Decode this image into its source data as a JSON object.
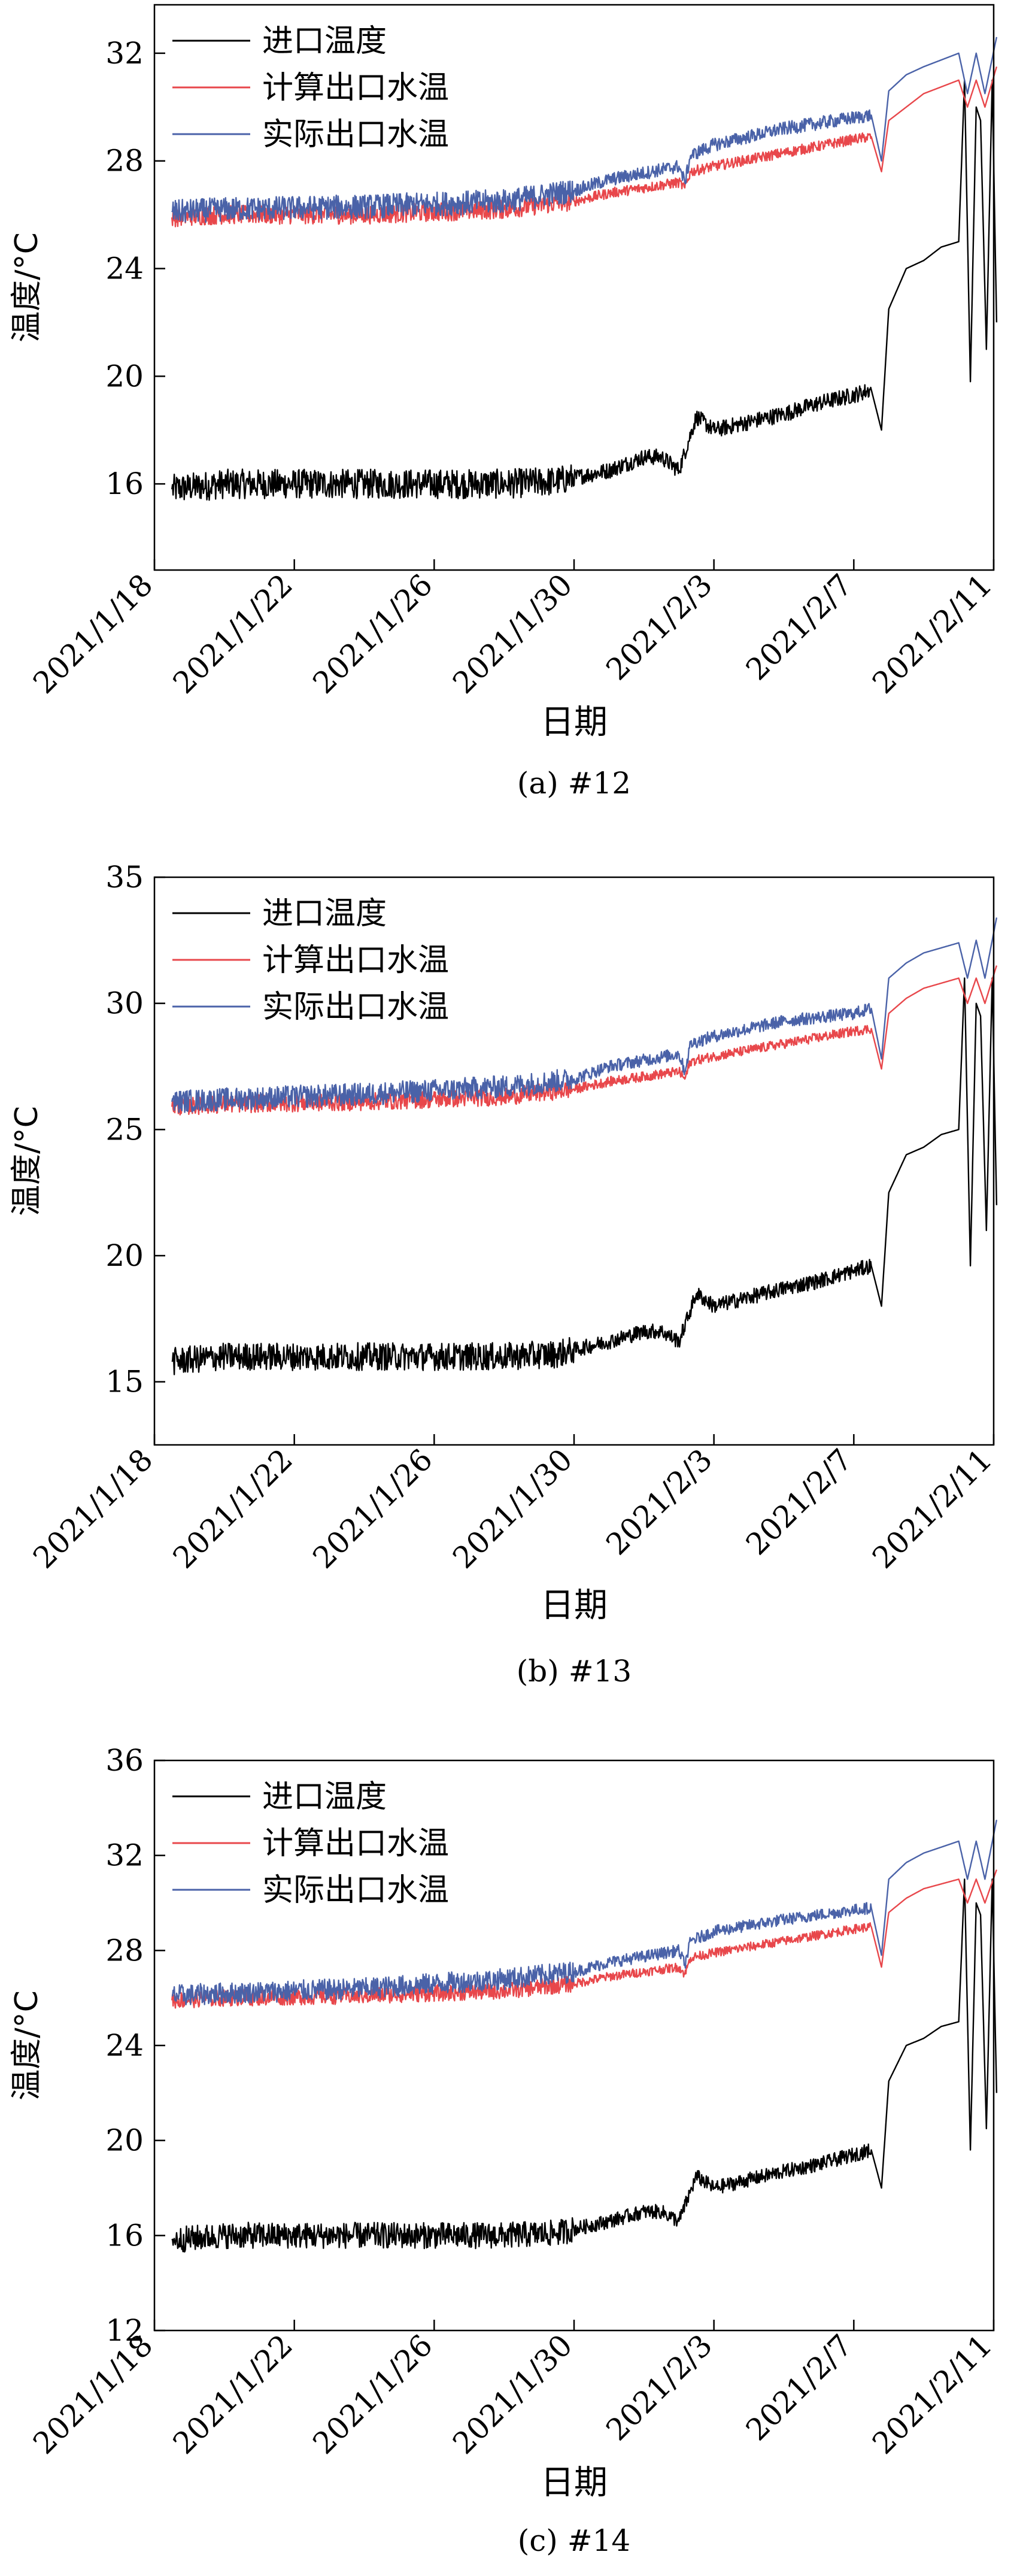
{
  "chart_data": [
    {
      "type": "line",
      "caption": "(a) #12",
      "xlabel": "日期",
      "ylabel": "温度/°C",
      "x_ticks": [
        "2021/1/18",
        "2021/1/22",
        "2021/1/26",
        "2021/1/30",
        "2021/2/3",
        "2021/2/7",
        "2021/2/11"
      ],
      "x_range": [
        "2021/1/18",
        "2021/2/11"
      ],
      "y_ticks": [
        16,
        20,
        24,
        28,
        32
      ],
      "ylim": [
        12.8,
        33.8
      ],
      "legend_position": "top-left",
      "series": [
        {
          "name": "进口温度",
          "color": "#000000",
          "x": [
            "2021/1/18 12:00",
            "2021/1/20",
            "2021/1/24",
            "2021/1/28",
            "2021/1/29 12:00",
            "2021/1/31",
            "2021/2/1",
            "2021/2/1 12:00",
            "2021/2/2",
            "2021/2/2 12:00",
            "2021/2/3",
            "2021/2/5",
            "2021/2/6",
            "2021/2/7",
            "2021/2/7 12:00",
            "2021/2/7 19:00",
            "2021/2/8",
            "2021/2/8 12:00",
            "2021/2/9",
            "2021/2/9 12:00",
            "2021/2/10",
            "2021/2/10 04:00",
            "2021/2/10 08:00",
            "2021/2/10 12:00",
            "2021/2/10 15:00",
            "2021/2/10 19:00",
            "2021/2/10 23:00",
            "2021/2/11 02:00"
          ],
          "values": [
            15.8,
            16.0,
            16.0,
            16.0,
            16.1,
            16.5,
            17.0,
            17.0,
            16.5,
            18.5,
            18.0,
            18.6,
            19.0,
            19.3,
            19.5,
            18.0,
            22.5,
            24.0,
            24.3,
            24.8,
            25.0,
            31.0,
            19.8,
            30.0,
            29.5,
            21.0,
            31.0,
            22.0
          ]
        },
        {
          "name": "计算出口水温",
          "color": "#e8474b",
          "x": [
            "2021/1/18 12:00",
            "2021/1/20",
            "2021/1/24",
            "2021/1/28",
            "2021/1/30",
            "2021/1/31",
            "2021/2/2",
            "2021/2/2 04:00",
            "2021/2/2 08:00",
            "2021/2/3",
            "2021/2/5",
            "2021/2/7",
            "2021/2/7 12:00",
            "2021/2/7 19:00",
            "2021/2/8",
            "2021/2/8 12:00",
            "2021/2/9",
            "2021/2/10",
            "2021/2/10 06:00",
            "2021/2/10 12:00",
            "2021/2/10 18:00",
            "2021/2/11 02:00"
          ],
          "values": [
            25.9,
            26.0,
            26.0,
            26.2,
            26.5,
            26.8,
            27.2,
            27.0,
            27.6,
            27.8,
            28.3,
            28.8,
            28.9,
            27.6,
            29.5,
            30.0,
            30.5,
            31.0,
            30.0,
            31.0,
            30.0,
            31.5
          ]
        },
        {
          "name": "实际出口水温",
          "color": "#4a62a8",
          "x": [
            "2021/1/18 12:00",
            "2021/1/20",
            "2021/1/24",
            "2021/1/28",
            "2021/1/30",
            "2021/1/31",
            "2021/2/2",
            "2021/2/2 04:00",
            "2021/2/2 08:00",
            "2021/2/3",
            "2021/2/5",
            "2021/2/7",
            "2021/2/7 12:00",
            "2021/2/7 19:00",
            "2021/2/8",
            "2021/2/8 12:00",
            "2021/2/9",
            "2021/2/10",
            "2021/2/10 06:00",
            "2021/2/10 12:00",
            "2021/2/10 18:00",
            "2021/2/11 02:00"
          ],
          "values": [
            26.1,
            26.2,
            26.3,
            26.5,
            26.9,
            27.3,
            27.8,
            27.2,
            28.2,
            28.6,
            29.2,
            29.6,
            29.7,
            28.0,
            30.6,
            31.2,
            31.5,
            32.0,
            30.5,
            32.0,
            30.5,
            32.6
          ]
        }
      ]
    },
    {
      "type": "line",
      "caption": "(b) #13",
      "xlabel": "日期",
      "ylabel": "温度/°C",
      "x_ticks": [
        "2021/1/18",
        "2021/1/22",
        "2021/1/26",
        "2021/1/30",
        "2021/2/3",
        "2021/2/7",
        "2021/2/11"
      ],
      "x_range": [
        "2021/1/18",
        "2021/2/11"
      ],
      "y_ticks": [
        15,
        20,
        25,
        30,
        35
      ],
      "ylim": [
        12.5,
        35
      ],
      "legend_position": "top-left",
      "series": [
        {
          "name": "进口温度",
          "color": "#000000",
          "x": [
            "2021/1/18 12:00",
            "2021/1/20",
            "2021/1/24",
            "2021/1/28",
            "2021/1/29 12:00",
            "2021/1/31",
            "2021/2/1",
            "2021/2/1 12:00",
            "2021/2/2",
            "2021/2/2 12:00",
            "2021/2/3",
            "2021/2/5",
            "2021/2/6",
            "2021/2/7",
            "2021/2/7 12:00",
            "2021/2/7 19:00",
            "2021/2/8",
            "2021/2/8 12:00",
            "2021/2/9",
            "2021/2/9 12:00",
            "2021/2/10",
            "2021/2/10 04:00",
            "2021/2/10 08:00",
            "2021/2/10 12:00",
            "2021/2/10 15:00",
            "2021/2/10 19:00",
            "2021/2/10 23:00",
            "2021/2/11 02:00"
          ],
          "values": [
            15.8,
            16.0,
            16.0,
            16.0,
            16.1,
            16.6,
            17.0,
            17.0,
            16.6,
            18.5,
            18.0,
            18.7,
            19.0,
            19.4,
            19.6,
            18.0,
            22.5,
            24.0,
            24.3,
            24.8,
            25.0,
            31.0,
            19.6,
            30.0,
            29.5,
            21.0,
            31.0,
            22.0
          ]
        },
        {
          "name": "计算出口水温",
          "color": "#e8474b",
          "x": [
            "2021/1/18 12:00",
            "2021/1/20",
            "2021/1/24",
            "2021/1/28",
            "2021/1/30",
            "2021/1/31",
            "2021/2/2",
            "2021/2/2 04:00",
            "2021/2/2 08:00",
            "2021/2/3",
            "2021/2/5",
            "2021/2/7",
            "2021/2/7 12:00",
            "2021/2/7 19:00",
            "2021/2/8",
            "2021/2/8 12:00",
            "2021/2/9",
            "2021/2/10",
            "2021/2/10 06:00",
            "2021/2/10 12:00",
            "2021/2/10 18:00",
            "2021/2/11 02:00"
          ],
          "values": [
            25.9,
            26.0,
            26.1,
            26.3,
            26.6,
            26.9,
            27.3,
            27.0,
            27.7,
            27.9,
            28.4,
            28.9,
            29.0,
            27.4,
            29.6,
            30.2,
            30.6,
            31.0,
            30.0,
            31.0,
            30.0,
            31.5
          ]
        },
        {
          "name": "实际出口水温",
          "color": "#4a62a8",
          "x": [
            "2021/1/18 12:00",
            "2021/1/20",
            "2021/1/24",
            "2021/1/28",
            "2021/1/30",
            "2021/1/31",
            "2021/2/2",
            "2021/2/2 04:00",
            "2021/2/2 08:00",
            "2021/2/3",
            "2021/2/5",
            "2021/2/7",
            "2021/2/7 12:00",
            "2021/2/7 19:00",
            "2021/2/8",
            "2021/2/8 12:00",
            "2021/2/9",
            "2021/2/10",
            "2021/2/10 06:00",
            "2021/2/10 12:00",
            "2021/2/10 18:00",
            "2021/2/11 02:00"
          ],
          "values": [
            26.1,
            26.2,
            26.4,
            26.7,
            27.0,
            27.5,
            28.0,
            27.3,
            28.4,
            28.7,
            29.3,
            29.6,
            29.8,
            27.8,
            31.0,
            31.6,
            32.0,
            32.4,
            31.0,
            32.5,
            31.0,
            33.4
          ]
        }
      ]
    },
    {
      "type": "line",
      "caption": "(c) #14",
      "xlabel": "日期",
      "ylabel": "温度/°C",
      "x_ticks": [
        "2021/1/18",
        "2021/1/22",
        "2021/1/26",
        "2021/1/30",
        "2021/2/3",
        "2021/2/7",
        "2021/2/11"
      ],
      "x_range": [
        "2021/1/18",
        "2021/2/11"
      ],
      "y_ticks": [
        12,
        16,
        20,
        24,
        28,
        32,
        36
      ],
      "ylim": [
        12,
        36
      ],
      "legend_position": "top-left",
      "series": [
        {
          "name": "进口温度",
          "color": "#000000",
          "x": [
            "2021/1/18 12:00",
            "2021/1/20",
            "2021/1/24",
            "2021/1/28",
            "2021/1/29 12:00",
            "2021/1/31",
            "2021/2/1",
            "2021/2/1 12:00",
            "2021/2/2",
            "2021/2/2 12:00",
            "2021/2/3",
            "2021/2/5",
            "2021/2/6",
            "2021/2/7",
            "2021/2/7 12:00",
            "2021/2/7 19:00",
            "2021/2/8",
            "2021/2/8 12:00",
            "2021/2/9",
            "2021/2/9 12:00",
            "2021/2/10",
            "2021/2/10 04:00",
            "2021/2/10 08:00",
            "2021/2/10 12:00",
            "2021/2/10 15:00",
            "2021/2/10 19:00",
            "2021/2/10 23:00",
            "2021/2/11 02:00"
          ],
          "values": [
            15.8,
            16.0,
            16.0,
            16.0,
            16.1,
            16.6,
            17.0,
            17.0,
            16.6,
            18.5,
            18.0,
            18.7,
            19.0,
            19.4,
            19.6,
            18.0,
            22.5,
            24.0,
            24.3,
            24.8,
            25.0,
            31.0,
            19.6,
            30.0,
            29.5,
            20.5,
            31.0,
            22.0
          ]
        },
        {
          "name": "计算出口水温",
          "color": "#e8474b",
          "x": [
            "2021/1/18 12:00",
            "2021/1/20",
            "2021/1/24",
            "2021/1/28",
            "2021/1/30",
            "2021/1/31",
            "2021/2/2",
            "2021/2/2 04:00",
            "2021/2/2 08:00",
            "2021/2/3",
            "2021/2/5",
            "2021/2/7",
            "2021/2/7 12:00",
            "2021/2/7 19:00",
            "2021/2/8",
            "2021/2/8 12:00",
            "2021/2/9",
            "2021/2/10",
            "2021/2/10 06:00",
            "2021/2/10 12:00",
            "2021/2/10 18:00",
            "2021/2/11 02:00"
          ],
          "values": [
            25.9,
            26.0,
            26.1,
            26.3,
            26.6,
            26.9,
            27.3,
            27.0,
            27.7,
            27.9,
            28.4,
            28.9,
            29.0,
            27.3,
            29.6,
            30.2,
            30.6,
            31.0,
            30.0,
            31.0,
            30.0,
            31.4
          ]
        },
        {
          "name": "实际出口水温",
          "color": "#4a62a8",
          "x": [
            "2021/1/18 12:00",
            "2021/1/20",
            "2021/1/24",
            "2021/1/28",
            "2021/1/30",
            "2021/1/31",
            "2021/2/2",
            "2021/2/2 04:00",
            "2021/2/2 08:00",
            "2021/2/3",
            "2021/2/5",
            "2021/2/7",
            "2021/2/7 12:00",
            "2021/2/7 19:00",
            "2021/2/8",
            "2021/2/8 12:00",
            "2021/2/9",
            "2021/2/10",
            "2021/2/10 06:00",
            "2021/2/10 12:00",
            "2021/2/10 18:00",
            "2021/2/11 02:00"
          ],
          "values": [
            26.1,
            26.2,
            26.4,
            26.8,
            27.1,
            27.5,
            28.0,
            27.4,
            28.4,
            28.8,
            29.3,
            29.7,
            29.8,
            27.8,
            31.0,
            31.7,
            32.1,
            32.6,
            31.0,
            32.6,
            31.0,
            33.5
          ]
        }
      ]
    }
  ]
}
